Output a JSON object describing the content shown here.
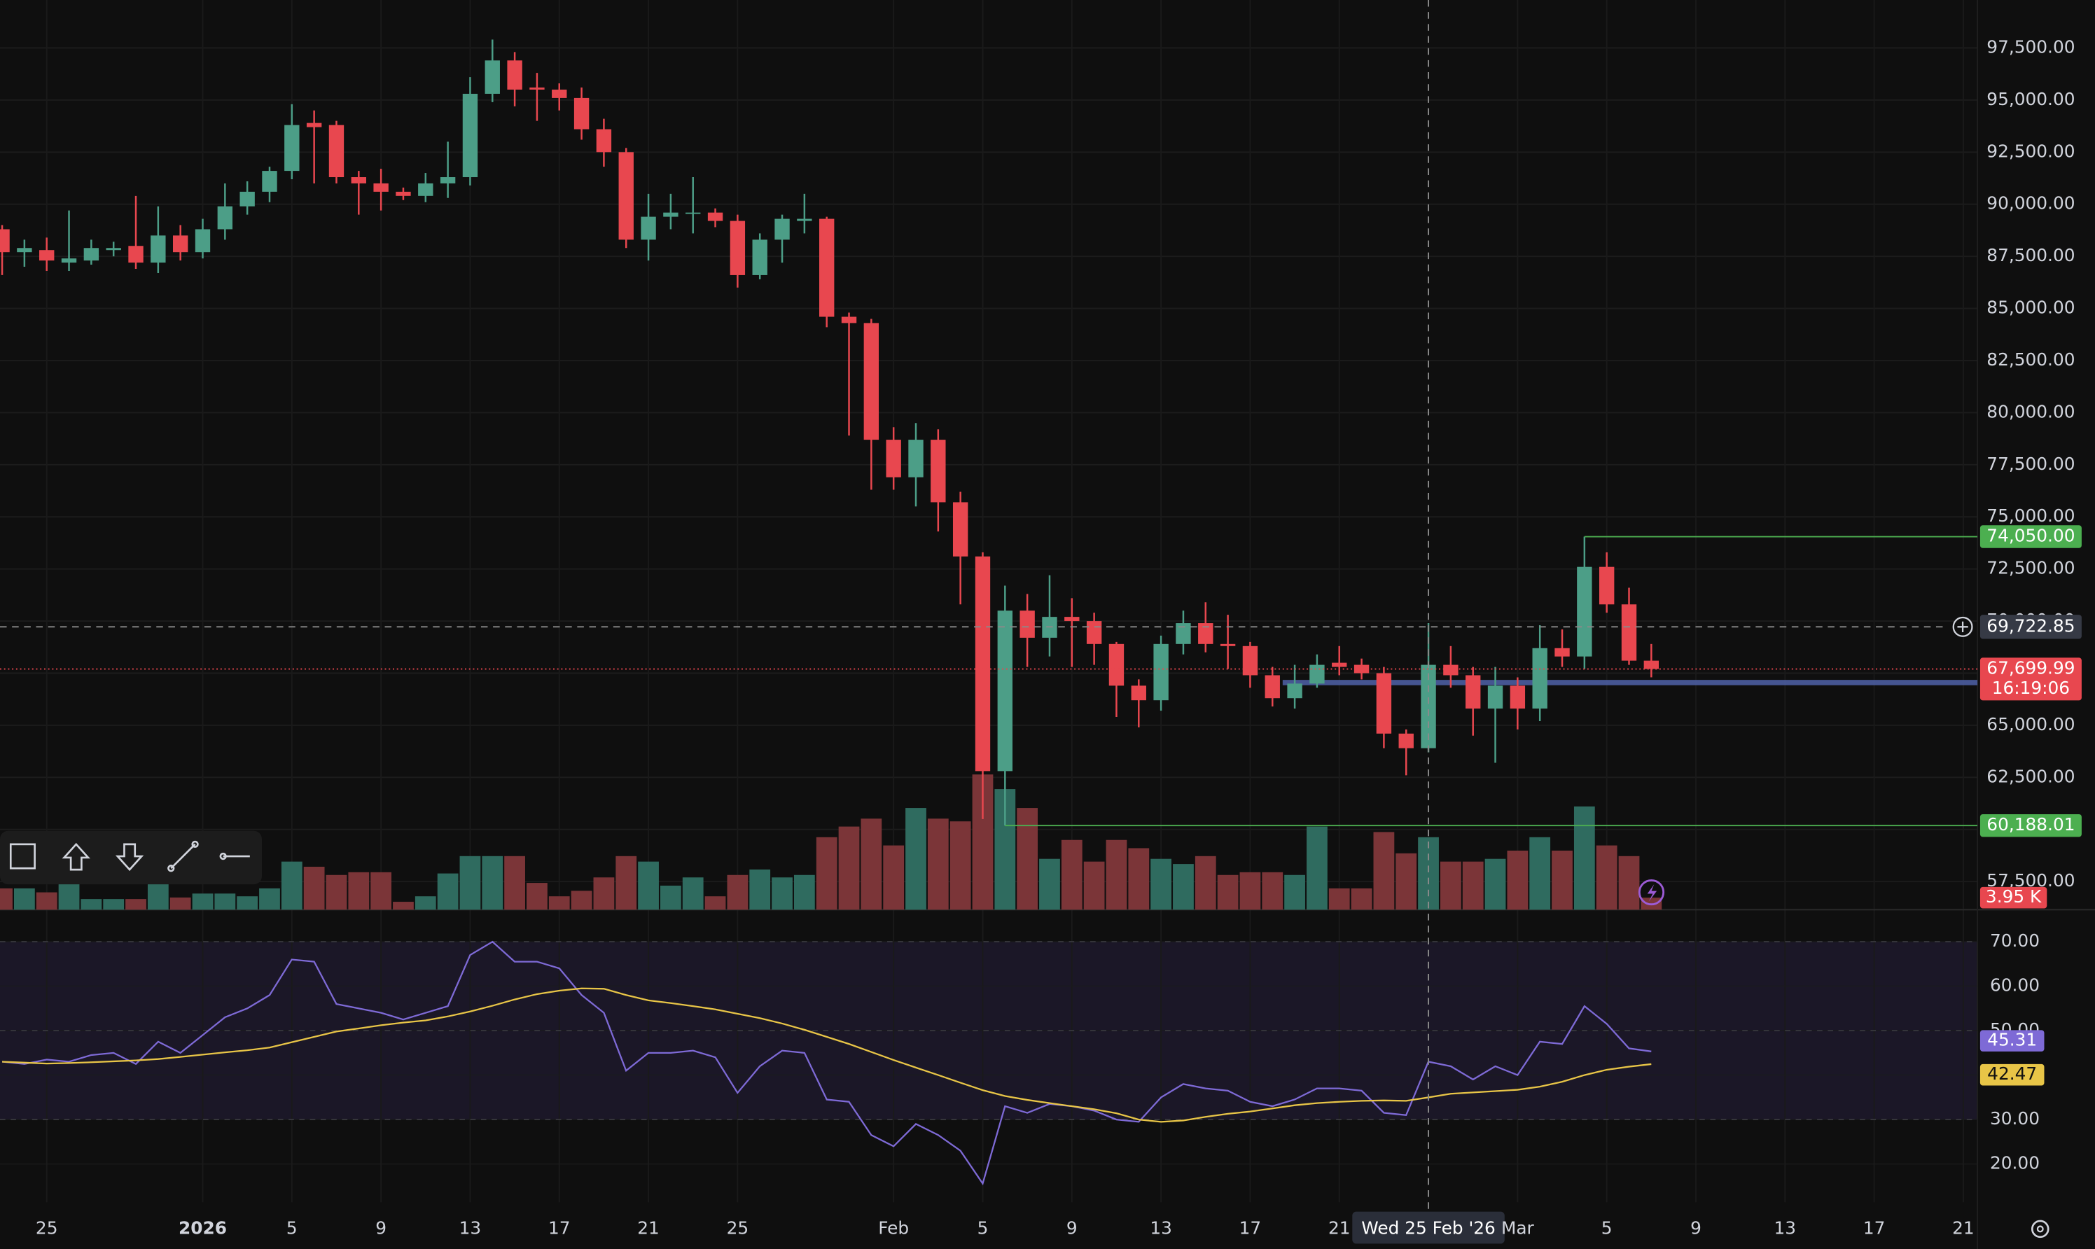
{
  "chart_data": {
    "type": "candlestick",
    "up_color": "#4c9e87",
    "down_color": "#e8474f",
    "grid": true,
    "categories": [
      null,
      null,
      "25",
      null,
      null,
      null,
      null,
      null,
      null,
      "2026",
      null,
      null,
      null,
      "5",
      null,
      null,
      null,
      "9",
      null,
      null,
      null,
      "13",
      null,
      null,
      null,
      "17",
      null,
      null,
      null,
      "21",
      null,
      null,
      null,
      "25",
      null,
      null,
      null,
      null,
      null,
      null,
      "Feb",
      null,
      null,
      null,
      "5",
      null,
      null,
      null,
      "9",
      null,
      null,
      null,
      "13",
      null,
      null,
      null,
      "17",
      null,
      null,
      null,
      "21",
      null,
      null,
      null,
      "Wed 25 Feb '26",
      null,
      null,
      null,
      "Mar",
      null,
      null,
      null,
      "5",
      null,
      null,
      null,
      "9",
      null,
      null,
      null,
      "13",
      null,
      null,
      null,
      "17",
      null,
      null,
      null,
      "21"
    ],
    "open": [
      88800,
      87700,
      87800,
      87200,
      87300,
      87800,
      88000,
      87200,
      88500,
      87700,
      88800,
      89900,
      90600,
      91600,
      93900,
      93800,
      91300,
      91000,
      90600,
      90400,
      91000,
      91300,
      95300,
      96900,
      95600,
      95500,
      95100,
      93600,
      92500,
      88300,
      89400,
      89600,
      89600,
      89200,
      86600,
      88300,
      89200,
      89300,
      84600,
      84300,
      78700,
      76900,
      78700,
      75700,
      73100,
      62800,
      70500,
      69200,
      70200,
      70000,
      68900,
      66900,
      66200,
      68900,
      69900,
      68900,
      68800,
      67400,
      66300,
      67000,
      68000,
      67900,
      67500,
      64600,
      63900,
      67900,
      67400,
      65800,
      66900,
      65800,
      68700,
      68300,
      72600,
      70800,
      68100,
      null,
      null,
      null,
      null,
      null,
      null,
      null,
      null,
      null,
      null,
      null,
      null,
      null,
      null
    ],
    "high": [
      89000,
      88300,
      88400,
      89700,
      88300,
      88200,
      90400,
      89900,
      89000,
      89300,
      91000,
      91100,
      91800,
      94800,
      94500,
      94000,
      91600,
      91700,
      90800,
      91500,
      93000,
      96100,
      97900,
      97300,
      96300,
      95800,
      95600,
      94100,
      92700,
      90500,
      90500,
      91300,
      89800,
      89500,
      88600,
      89500,
      90500,
      89400,
      84800,
      84500,
      79300,
      79500,
      79200,
      76200,
      73300,
      71700,
      71300,
      72200,
      71100,
      70400,
      69000,
      67200,
      69300,
      70500,
      70900,
      70300,
      69000,
      67800,
      67900,
      68400,
      68800,
      68200,
      67800,
      64800,
      69900,
      68800,
      67800,
      67800,
      67300,
      69800,
      69600,
      74050,
      73300,
      71600,
      68900,
      null,
      null,
      null,
      null,
      null,
      null,
      null,
      null,
      null,
      null,
      null,
      null,
      null,
      null
    ],
    "low": [
      86600,
      87000,
      86800,
      86800,
      87100,
      87500,
      86900,
      86700,
      87300,
      87400,
      88300,
      89500,
      90100,
      91200,
      91000,
      91000,
      89500,
      89700,
      90200,
      90100,
      90300,
      90900,
      94900,
      94700,
      94000,
      94500,
      93100,
      91800,
      87900,
      87300,
      88800,
      88600,
      88900,
      86000,
      86400,
      87200,
      88600,
      84100,
      78900,
      76300,
      76300,
      75500,
      74300,
      70800,
      60500,
      60188.01,
      67800,
      68300,
      67800,
      67900,
      65400,
      64900,
      65700,
      68400,
      68500,
      67700,
      66800,
      65900,
      65800,
      66800,
      67400,
      67200,
      63900,
      62600,
      63700,
      66800,
      64500,
      63200,
      64800,
      65200,
      67800,
      67700,
      70400,
      67900,
      67300,
      null,
      null,
      null,
      null,
      null,
      null,
      null,
      null,
      null,
      null,
      null,
      null,
      null,
      null
    ],
    "close": [
      87700,
      87900,
      87300,
      87400,
      87900,
      87900,
      87200,
      88500,
      87700,
      88800,
      89900,
      90600,
      91600,
      93800,
      93700,
      91300,
      91000,
      90600,
      90400,
      91000,
      91300,
      95300,
      96900,
      95500,
      95500,
      95100,
      93600,
      92500,
      88300,
      89400,
      89600,
      89600,
      89200,
      86600,
      88300,
      89300,
      89300,
      84600,
      84300,
      78700,
      76900,
      78700,
      75700,
      73100,
      62800,
      70500,
      69200,
      70200,
      70000,
      68900,
      66900,
      66200,
      68900,
      69900,
      68900,
      68800,
      67400,
      66300,
      67000,
      67900,
      67800,
      67500,
      64600,
      63900,
      67900,
      67400,
      65800,
      66900,
      65800,
      68700,
      68300,
      72600,
      70800,
      68100,
      67699.99,
      null,
      null,
      null,
      null,
      null,
      null,
      null,
      null,
      null,
      null,
      null,
      null,
      null,
      null
    ],
    "ylim": [
      56150,
      99800
    ],
    "yticks": [
      {
        "value": 57500,
        "label": "57,500.00"
      },
      {
        "value": 60000,
        "label": "60,000.00"
      },
      {
        "value": 62500,
        "label": "62,500.00"
      },
      {
        "value": 65000,
        "label": "65,000.00"
      },
      {
        "value": 67500,
        "label": "67,500.00"
      },
      {
        "value": 70000,
        "label": "70,000.00"
      },
      {
        "value": 72500,
        "label": "72,500.00"
      },
      {
        "value": 75000,
        "label": "75,000.00"
      },
      {
        "value": 77500,
        "label": "77,500.00"
      },
      {
        "value": 80000,
        "label": "80,000.00"
      },
      {
        "value": 82500,
        "label": "82,500.00"
      },
      {
        "value": 85000,
        "label": "85,000.00"
      },
      {
        "value": 87500,
        "label": "87,500.00"
      },
      {
        "value": 90000,
        "label": "90,000.00"
      },
      {
        "value": 92500,
        "label": "92,500.00"
      },
      {
        "value": 95000,
        "label": "95,000.00"
      },
      {
        "value": 97500,
        "label": "97,500.00"
      }
    ],
    "levels": [
      {
        "value": 74050,
        "label": "74,050.00",
        "color": "#4caf50"
      },
      {
        "value": 60188.01,
        "label": "60,188.01",
        "color": "#4caf50"
      }
    ],
    "drawing": {
      "value": 67050,
      "color": "#4f61a8"
    },
    "last_price": {
      "value": 67699.99,
      "label": "67,699.99",
      "countdown": "16:19:06"
    },
    "crosshair": {
      "value": 69722.85,
      "label": "69,722.85"
    },
    "volume": {
      "up_color": "#2f6b5f",
      "down_color": "#7b3538",
      "ylim": [
        0,
        50
      ],
      "values": [
        7.0,
        7.0,
        5.7,
        10.6,
        3.5,
        3.5,
        3.5,
        10.6,
        4.0,
        5.3,
        5.3,
        4.4,
        7.0,
        15.8,
        14.1,
        11.4,
        12.3,
        12.3,
        2.6,
        4.4,
        11.9,
        17.6,
        17.6,
        17.6,
        8.8,
        4.4,
        6.2,
        10.6,
        17.6,
        15.8,
        7.9,
        10.6,
        4.4,
        11.4,
        13.2,
        10.6,
        11.4,
        23.8,
        27.3,
        29.9,
        21.1,
        33.4,
        29.9,
        29.0,
        44.4,
        39.6,
        33.4,
        16.7,
        22.9,
        15.8,
        22.9,
        20.2,
        16.7,
        15.0,
        17.6,
        11.4,
        12.3,
        12.3,
        11.4,
        27.3,
        7.0,
        7.0,
        25.5,
        18.5,
        23.8,
        15.8,
        15.8,
        16.7,
        19.4,
        23.8,
        19.4,
        33.9,
        21.1,
        17.6,
        3.95,
        null,
        null,
        null,
        null,
        null,
        null,
        null,
        null,
        null,
        null,
        null,
        null,
        null,
        null
      ],
      "value_labels": [
        null,
        null,
        null,
        null,
        null,
        null,
        null,
        null,
        null,
        null,
        null,
        null,
        null,
        null,
        null,
        null,
        null,
        null,
        null,
        null,
        null,
        null,
        null,
        null,
        null,
        null,
        null,
        null,
        null,
        null,
        null,
        null,
        null,
        null,
        null,
        null,
        null,
        null,
        null,
        null,
        null,
        null,
        null,
        null,
        null,
        null,
        null,
        null,
        null,
        null,
        null,
        null,
        null,
        null,
        null,
        null,
        null,
        null,
        null,
        null,
        null,
        null,
        null,
        null,
        null,
        null,
        null,
        null,
        null,
        null,
        null,
        null,
        null,
        null,
        "3.95 K",
        null,
        null,
        null,
        null,
        null,
        null,
        null,
        null,
        null,
        null,
        null,
        null,
        null,
        null
      ]
    },
    "rsi": {
      "type": "line",
      "ylim": [
        11.4,
        77.2
      ],
      "yticks": [
        {
          "value": 20,
          "label": "20.00"
        },
        {
          "value": 30,
          "label": "30.00"
        },
        {
          "value": 40,
          "label": "40.00"
        },
        {
          "value": 50,
          "label": "50.00"
        },
        {
          "value": 60,
          "label": "60.00"
        },
        {
          "value": 70,
          "label": "70.00"
        }
      ],
      "levels": [
        30,
        50,
        70
      ],
      "band_color": "#1b1727",
      "series": [
        {
          "color": "#7e6ad6",
          "values": [
            43,
            42.5,
            43.5,
            43,
            44.5,
            45,
            42.5,
            47.5,
            45,
            49,
            53,
            55,
            58,
            66,
            65.5,
            56,
            55,
            54,
            52.5,
            54,
            55.5,
            67,
            70,
            65.5,
            65.5,
            64,
            58,
            54,
            41,
            45,
            45,
            45.5,
            44,
            36,
            42,
            45.5,
            45,
            34.5,
            34,
            26.5,
            24,
            29,
            26.5,
            23,
            15.6,
            33,
            31.5,
            33.5,
            33,
            32,
            30,
            29.5,
            35,
            38,
            37,
            36.5,
            34,
            33,
            34.5,
            37,
            37,
            36.5,
            31.5,
            31,
            43,
            42,
            39,
            42,
            40,
            47.5,
            47,
            55.5,
            51.5,
            46,
            45.31,
            null,
            null,
            null,
            null,
            null,
            null,
            null,
            null,
            null,
            null,
            null,
            null,
            null,
            null
          ]
        },
        {
          "color": "#e8c547",
          "values": [
            43,
            42.8,
            42.6,
            42.7,
            42.9,
            43.1,
            43.3,
            43.6,
            44.1,
            44.6,
            45.1,
            45.6,
            46.2,
            47.4,
            48.6,
            49.8,
            50.5,
            51.2,
            51.8,
            52.3,
            53.2,
            54.3,
            55.6,
            57,
            58.2,
            59,
            59.5,
            59.4,
            58,
            56.8,
            56.2,
            55.5,
            54.8,
            53.8,
            52.8,
            51.6,
            50.2,
            48.6,
            47,
            45.2,
            43.4,
            41.7,
            40,
            38.3,
            36.6,
            35.3,
            34.4,
            33.7,
            33,
            32.3,
            31.4,
            30,
            29.5,
            29.8,
            30.6,
            31.3,
            31.8,
            32.5,
            33.2,
            33.7,
            34,
            34.2,
            34.3,
            34.2,
            35,
            35.8,
            36.1,
            36.4,
            36.7,
            37.4,
            38.5,
            40,
            41.2,
            41.9,
            42.47,
            null,
            null,
            null,
            null,
            null,
            null,
            null,
            null,
            null,
            null,
            null,
            null,
            null,
            null
          ]
        }
      ]
    }
  }
}
